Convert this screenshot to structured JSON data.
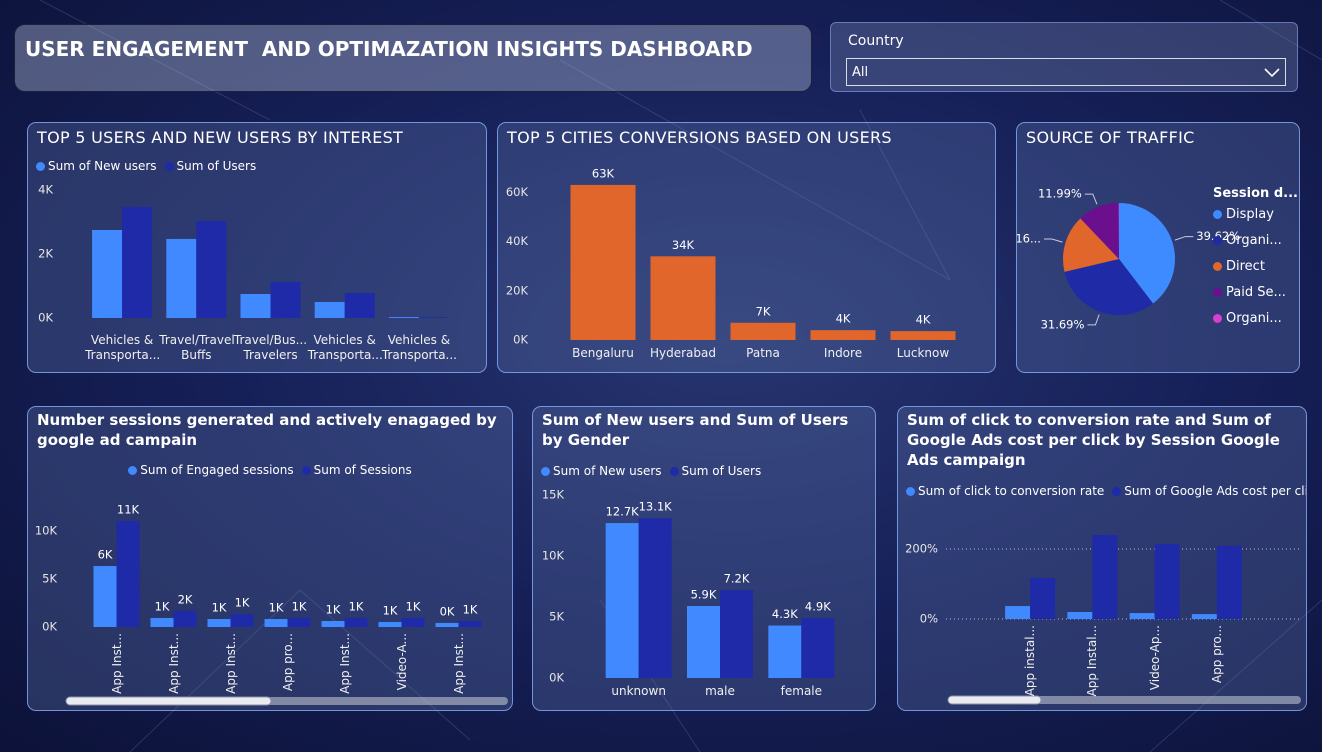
{
  "header": {
    "title": "USER ENGAGEMENT  AND OPTIMAZATION INSIGHTS DASHBOARD"
  },
  "slicer": {
    "label": "Country",
    "value": "All"
  },
  "chart_data": [
    {
      "type": "bar",
      "title": "TOP 5 USERS AND NEW USERS BY INTEREST",
      "categories": [
        "Vehicles & Transporta...",
        "Travel/Travel Buffs",
        "Travel/Bus... Travelers",
        "Vehicles & Transporta...",
        "Vehicles & Transporta..."
      ],
      "series": [
        {
          "name": "Sum of New users",
          "color": "#4189ff",
          "values": [
            2750,
            2470,
            750,
            500,
            30
          ]
        },
        {
          "name": "Sum of Users",
          "color": "#1e2aa8",
          "values": [
            3470,
            3030,
            1125,
            780,
            20
          ]
        }
      ],
      "ylim": [
        0,
        4000
      ],
      "yticks": [
        {
          "value": 0,
          "label": "0K"
        },
        {
          "value": 2000,
          "label": "2K"
        },
        {
          "value": 4000,
          "label": "4K"
        }
      ],
      "grid": false
    },
    {
      "type": "bar",
      "title": "TOP 5 CITIES CONVERSIONS BASED ON USERS",
      "categories": [
        "Bengaluru",
        "Hyderabad",
        "Patna",
        "Indore",
        "Lucknow"
      ],
      "values": [
        63000,
        34000,
        7000,
        4000,
        3600
      ],
      "value_labels": [
        "63K",
        "34K",
        "7K",
        "4K",
        "4K"
      ],
      "color": "#e0662b",
      "ylim": [
        0,
        65000
      ],
      "yticks": [
        {
          "value": 0,
          "label": "0K"
        },
        {
          "value": 20000,
          "label": "20K"
        },
        {
          "value": 40000,
          "label": "40K"
        },
        {
          "value": 60000,
          "label": "60K"
        }
      ],
      "grid": false
    },
    {
      "type": "pie",
      "title": "SOURCE OF TRAFFIC",
      "legend_title": "Session d...",
      "categories": [
        "Display",
        "Organi...",
        "Direct",
        "Paid Se...",
        "Organi..."
      ],
      "values": [
        39.62,
        31.69,
        16.6,
        11.99,
        0.1
      ],
      "value_labels": [
        "39.62%",
        "31.69%",
        "16...",
        "11.99%",
        null
      ],
      "colors": [
        "#3d8bff",
        "#1f2aa6",
        "#e0662b",
        "#6b0f8f",
        "#d63fd0"
      ]
    },
    {
      "type": "bar",
      "title": "Number sessions generated and actively enagaged by google ad campain",
      "categories": [
        "App Inst...",
        "App Inst...",
        "App Inst...",
        "App pro...",
        "App Inst...",
        "Video-A...",
        "App Inst..."
      ],
      "series": [
        {
          "name": "Sum of Engaged sessions",
          "color": "#4189ff",
          "values": [
            6350,
            940,
            830,
            830,
            625,
            520,
            420
          ],
          "value_labels": [
            "6K",
            "1K",
            "1K",
            "1K",
            "1K",
            "1K",
            "0K"
          ]
        },
        {
          "name": "Sum of Sessions",
          "color": "#1e2aa8",
          "values": [
            11040,
            1670,
            1350,
            940,
            940,
            940,
            625
          ],
          "value_labels": [
            "11K",
            "2K",
            "1K",
            "1K",
            "1K",
            "1K",
            "1K"
          ]
        }
      ],
      "ylim": [
        0,
        12000
      ],
      "yticks": [
        {
          "value": 0,
          "label": "0K"
        },
        {
          "value": 5000,
          "label": "5K"
        },
        {
          "value": 10000,
          "label": "10K"
        }
      ],
      "grid": false
    },
    {
      "type": "bar",
      "title": "Sum of New users and Sum of Users by Gender",
      "categories": [
        "unknown",
        "male",
        "female"
      ],
      "series": [
        {
          "name": "Sum of New users",
          "color": "#4189ff",
          "values": [
            12700,
            5900,
            4300
          ],
          "value_labels": [
            "12.7K",
            "5.9K",
            "4.3K"
          ]
        },
        {
          "name": "Sum of Users",
          "color": "#1e2aa8",
          "values": [
            13100,
            7200,
            4900
          ],
          "value_labels": [
            "13.1K",
            "7.2K",
            "4.9K"
          ]
        }
      ],
      "ylim": [
        0,
        15000
      ],
      "yticks": [
        {
          "value": 0,
          "label": "0K"
        },
        {
          "value": 5000,
          "label": "5K"
        },
        {
          "value": 10000,
          "label": "10K"
        },
        {
          "value": 15000,
          "label": "15K"
        }
      ],
      "grid": false
    },
    {
      "type": "bar",
      "title": "Sum of click to conversion rate and Sum of Google Ads cost per click by Session Google Ads campaign",
      "categories": [
        "App instal...",
        "App Instal...",
        "Video-Ap...",
        "App pro..."
      ],
      "series": [
        {
          "name": "Sum of click to conversion rate",
          "color": "#4189ff",
          "values": [
            37,
            20,
            17,
            14
          ]
        },
        {
          "name": "Sum of Google Ads cost per click",
          "color": "#1e2aa8",
          "values": [
            117,
            240,
            214,
            209
          ]
        }
      ],
      "ylim": [
        0,
        250
      ],
      "yticks": [
        {
          "value": 0,
          "label": "0%"
        },
        {
          "value": 200,
          "label": "200%"
        }
      ],
      "grid": true
    }
  ]
}
